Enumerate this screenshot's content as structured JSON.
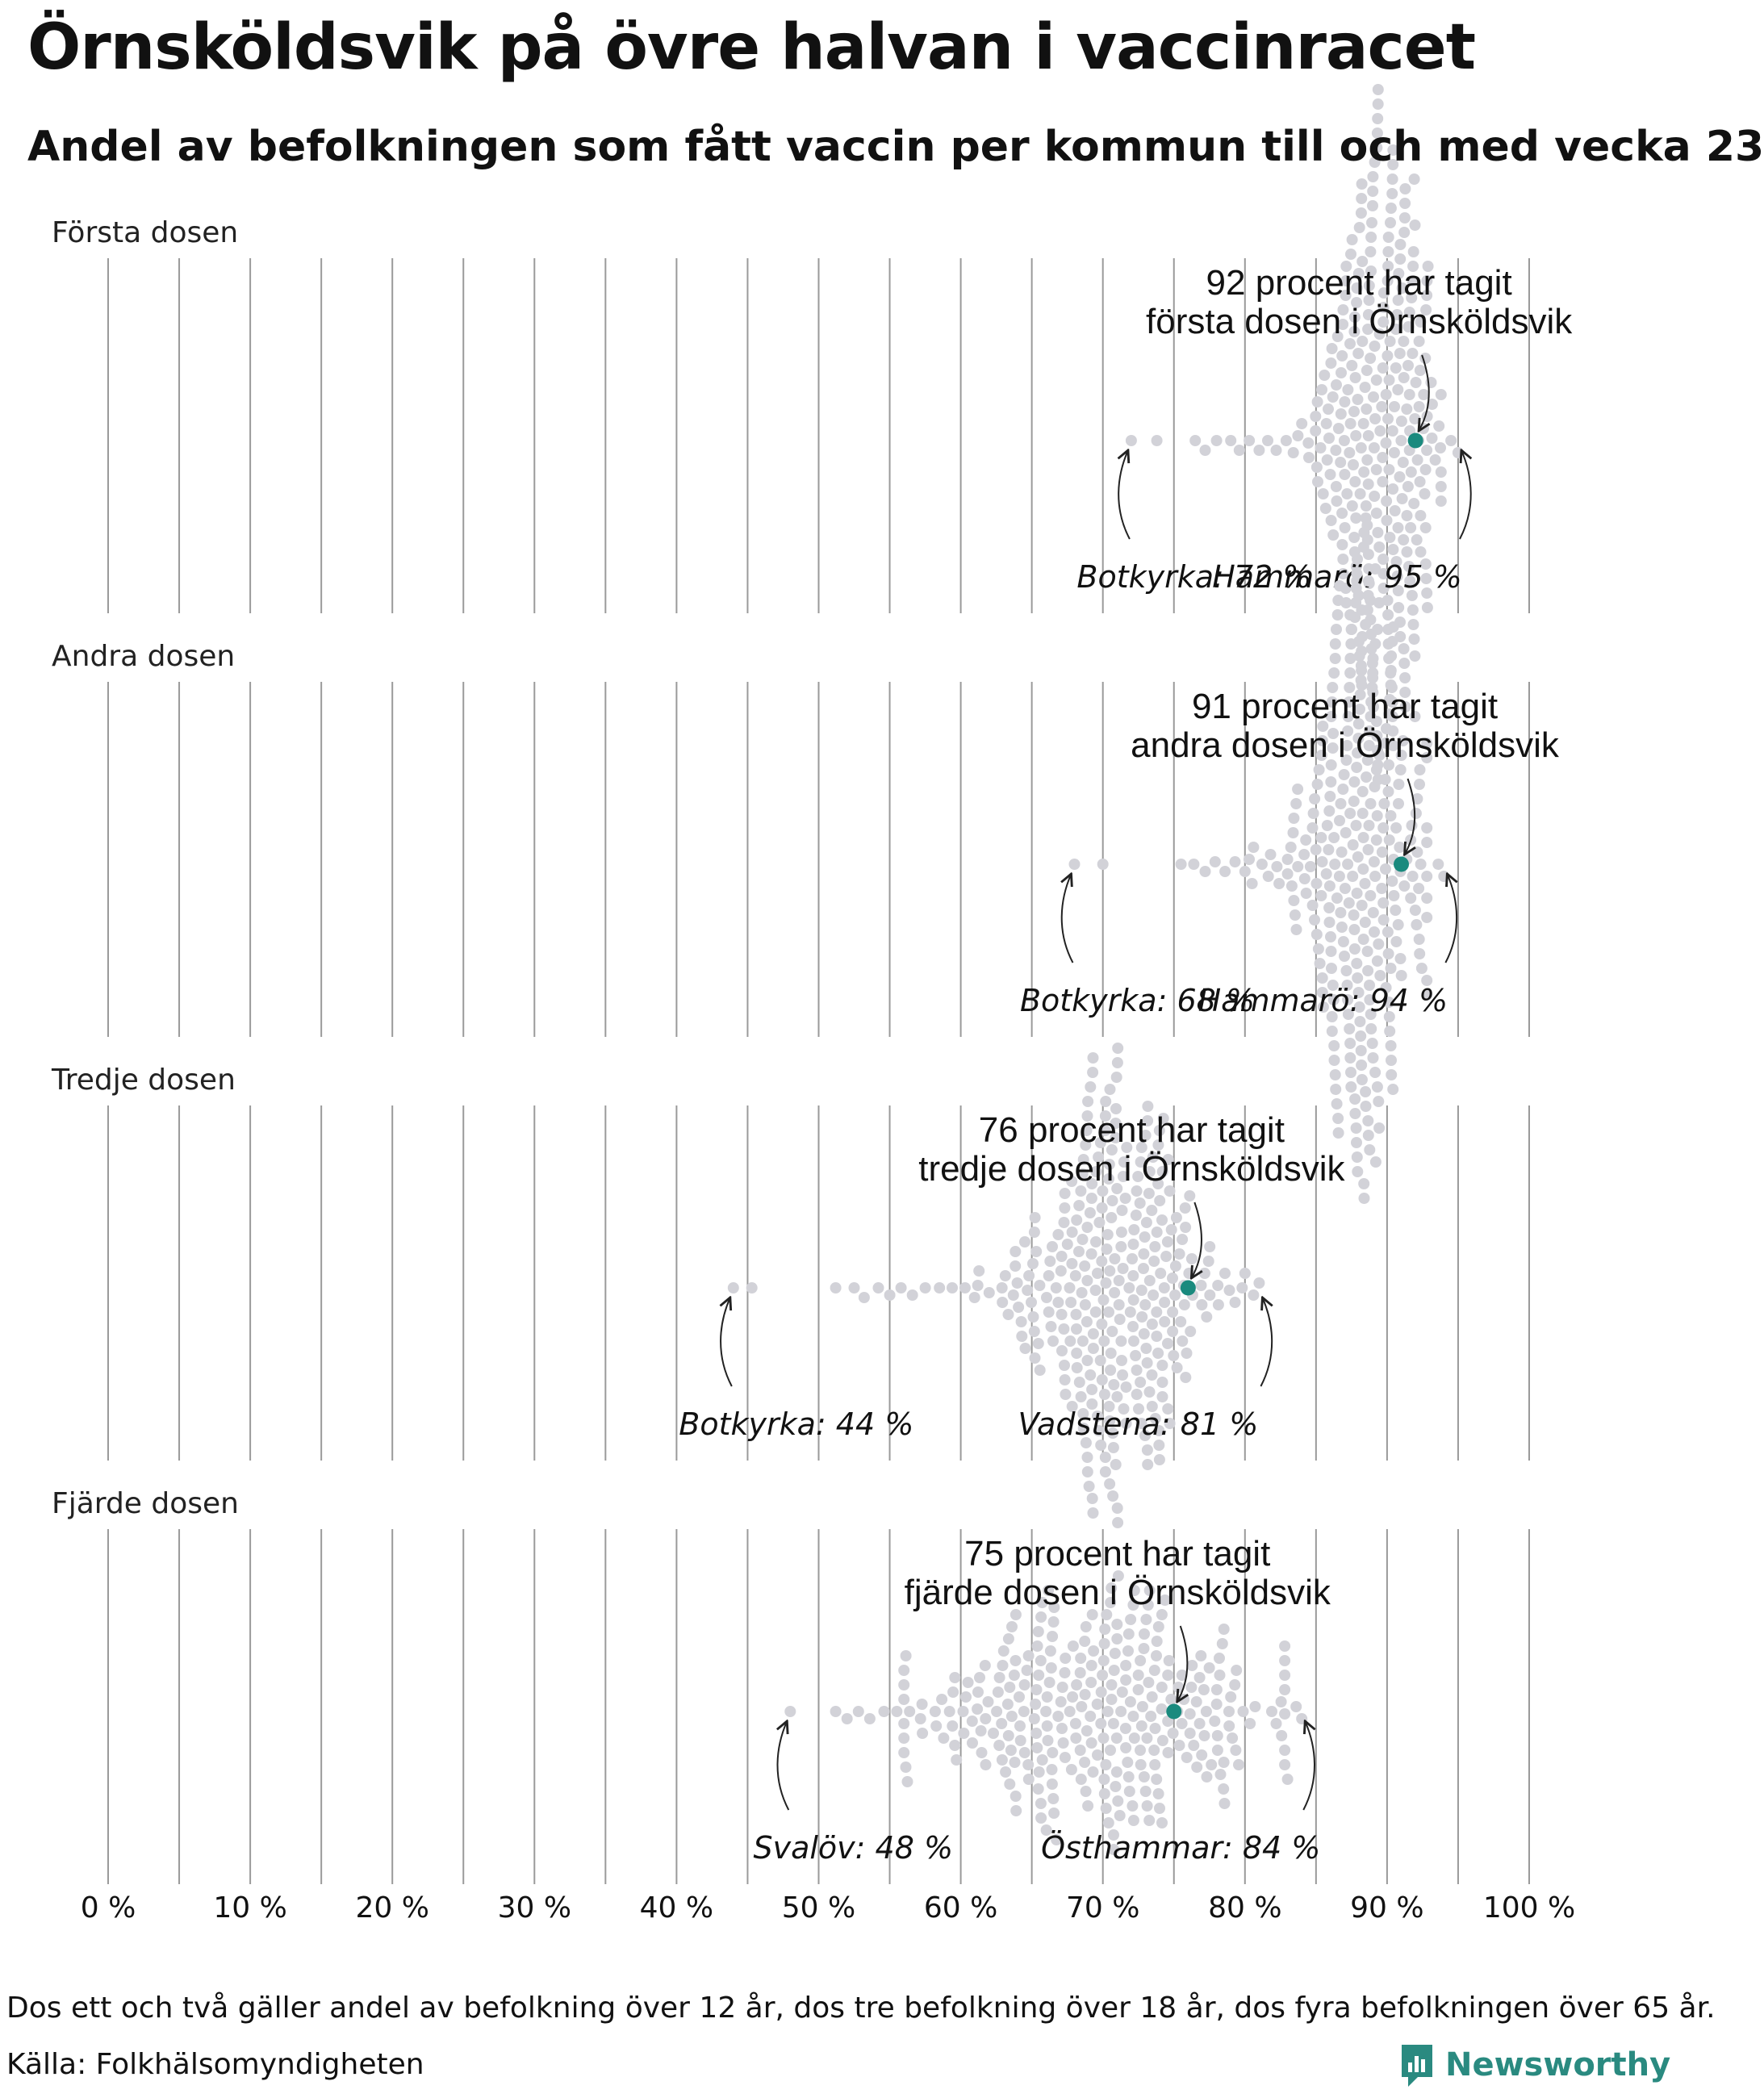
{
  "title": "Örnsköldsvik på övre halvan i vaccinracet",
  "subtitle": "Andel av befolkningen som fått vaccin per kommun till och med vecka 23",
  "footnote": "Dos ett och två gäller andel av befolkning över 12 år, dos tre befolkning över 18 år, dos fyra befolkningen över 65 år.",
  "source": "Källa: Folkhälsomyndigheten",
  "logo": {
    "text": "Newsworthy",
    "icon": "newsworthy-logo-icon",
    "color": "#2a8a80"
  },
  "colors": {
    "highlight": "#1a8a7e",
    "dot": "#d2d2d8",
    "grid": "#9a9a9a",
    "arrow": "#222222"
  },
  "chart_data": {
    "type": "scatter",
    "subtype": "beeswarm",
    "x_ticks": [
      "0 %",
      "10 %",
      "20 %",
      "30 %",
      "40 %",
      "50 %",
      "60 %",
      "70 %",
      "80 %",
      "90 %",
      "100 %"
    ],
    "xlim": [
      0,
      100
    ],
    "panels": [
      {
        "label": "Första dosen",
        "highlight": {
          "value": 92,
          "line1": "92 procent har tagit",
          "line2": "första dosen i Örnsköldsvik"
        },
        "min": {
          "value": 72,
          "label": "Botkyrka: 72 %"
        },
        "max": {
          "value": 95,
          "label": "Hammarö: 95 %"
        },
        "distribution": {
          "mean": 89.5,
          "sd": 2.2,
          "n": 290,
          "extra": [
            72,
            73.8,
            76.5,
            77.2,
            78,
            79,
            79.6,
            80.3,
            81,
            81.6,
            82.2,
            82.9,
            83.4,
            84,
            84.5,
            85.1,
            85.5,
            86,
            94.5,
            95
          ]
        }
      },
      {
        "label": "Andra dosen",
        "highlight": {
          "value": 91,
          "line1": "91 procent har tagit",
          "line2": "andra dosen i Örnsköldsvik"
        },
        "min": {
          "value": 68,
          "label": "Botkyrka: 68 %"
        },
        "max": {
          "value": 94,
          "label": "Hammarö: 94 %"
        },
        "distribution": {
          "mean": 88.3,
          "sd": 2.3,
          "n": 290,
          "extra": [
            68,
            70,
            75.5,
            76.4,
            77.2,
            77.9,
            78.6,
            79.3,
            80,
            80.6,
            81.2,
            81.8,
            82.4,
            83,
            83.6,
            84.2,
            84.9,
            93.6,
            94
          ]
        }
      },
      {
        "label": "Tredje dosen",
        "highlight": {
          "value": 76,
          "line1": "76 procent har tagit",
          "line2": "tredje dosen i Örnsköldsvik"
        },
        "min": {
          "value": 44,
          "label": "Botkyrka: 44 %"
        },
        "max": {
          "value": 81,
          "label": "Vadstena: 81 %"
        },
        "distribution": {
          "mean": 70.5,
          "sd": 3.6,
          "n": 290,
          "extra": [
            44,
            45.3,
            51.2,
            52.5,
            53.2,
            54.2,
            55,
            55.8,
            56.6,
            57.5,
            58.5,
            59.4,
            60.3,
            61.2,
            62,
            62.9,
            63.7,
            64.3,
            79.3,
            80,
            80.6,
            81
          ]
        }
      },
      {
        "label": "Fjärde dosen",
        "highlight": {
          "value": 75,
          "line1": "75 procent har tagit",
          "line2": "fjärde dosen i Örnsköldsvik"
        },
        "min": {
          "value": 48,
          "label": "Svalöv: 48 %"
        },
        "max": {
          "value": 84,
          "label": "Östhammar: 84 %"
        },
        "distribution": {
          "mean": 70,
          "sd": 6.2,
          "n": 290,
          "extra": [
            48,
            51.2,
            52,
            52.8,
            53.6,
            54.6,
            55.5,
            56.4,
            57.3,
            58.2,
            82.2,
            83,
            83.6,
            84
          ]
        }
      }
    ]
  }
}
